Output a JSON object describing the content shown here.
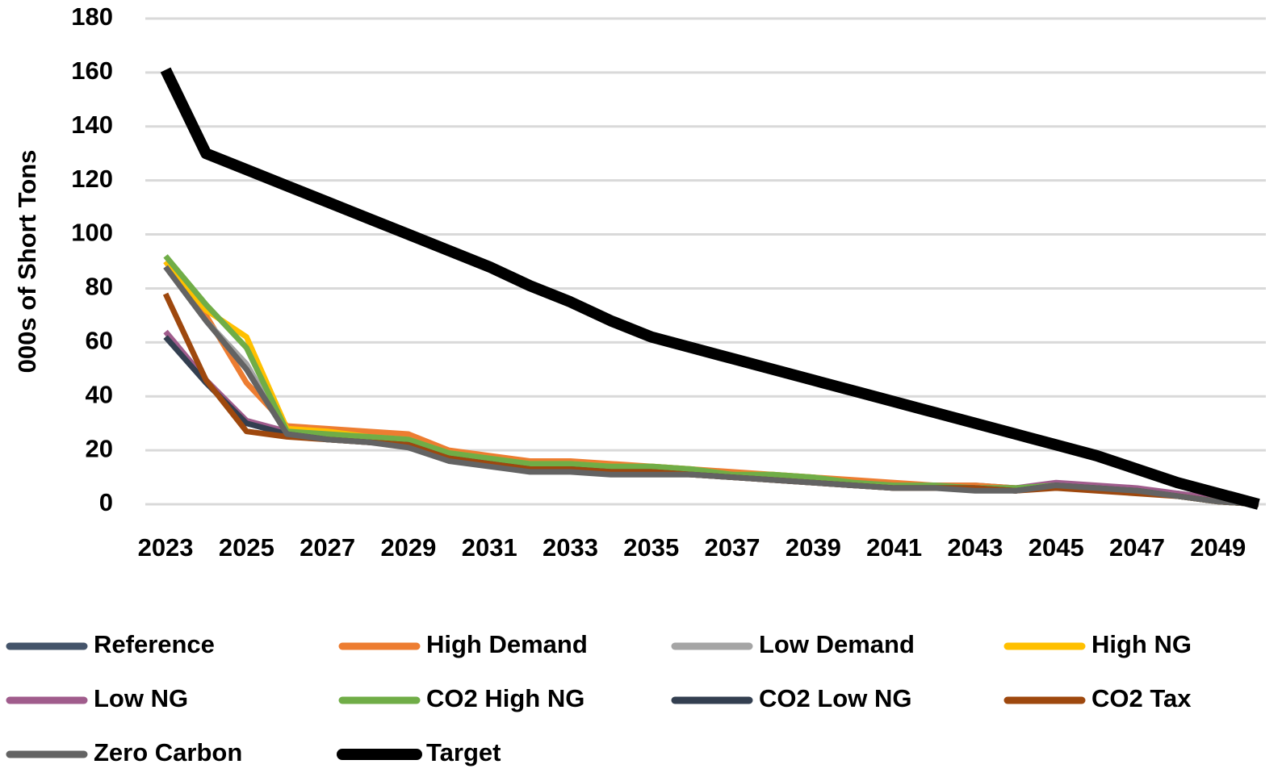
{
  "chart_data": {
    "type": "line",
    "ylabel": "000s of Short Tons",
    "x": [
      2023,
      2024,
      2025,
      2026,
      2027,
      2028,
      2029,
      2030,
      2031,
      2032,
      2033,
      2034,
      2035,
      2036,
      2037,
      2038,
      2039,
      2040,
      2041,
      2042,
      2043,
      2044,
      2045,
      2046,
      2047,
      2048,
      2049,
      2050
    ],
    "xlim": [
      2022.5,
      2050.5
    ],
    "xticks": [
      2023,
      2025,
      2027,
      2029,
      2031,
      2033,
      2035,
      2037,
      2039,
      2041,
      2043,
      2045,
      2047,
      2049
    ],
    "ylim": [
      0,
      180
    ],
    "yticks": [
      0,
      20,
      40,
      60,
      80,
      100,
      120,
      140,
      160,
      180
    ],
    "grid": true,
    "legend": "bottom",
    "series": [
      {
        "name": "Reference",
        "color": "#44546a",
        "values": [
          62,
          46,
          30,
          26,
          25,
          24,
          23,
          18,
          16,
          14,
          14,
          13,
          13,
          12,
          11,
          10,
          9,
          8,
          7,
          7,
          7,
          6,
          7,
          6,
          5,
          4,
          2,
          1
        ]
      },
      {
        "name": "High Demand",
        "color": "#ed7d31",
        "values": [
          90,
          70,
          45,
          29,
          28,
          27,
          26,
          20,
          18,
          16,
          16,
          15,
          14,
          13,
          12,
          11,
          10,
          9,
          8,
          7,
          7,
          6,
          7,
          6,
          5,
          3,
          2,
          0
        ]
      },
      {
        "name": "Low Demand",
        "color": "#a5a5a5",
        "values": [
          88,
          68,
          52,
          26,
          25,
          23,
          22,
          17,
          15,
          13,
          13,
          12,
          12,
          11,
          10,
          9,
          8,
          7,
          6,
          6,
          6,
          5,
          7,
          6,
          5,
          3,
          1,
          0
        ]
      },
      {
        "name": "High NG",
        "color": "#ffc000",
        "values": [
          90,
          72,
          62,
          28,
          27,
          25,
          24,
          19,
          17,
          15,
          15,
          14,
          14,
          13,
          11,
          11,
          10,
          8,
          7,
          7,
          6,
          6,
          7,
          6,
          5,
          3,
          1,
          0
        ]
      },
      {
        "name": "Low NG",
        "color": "#a05c8c",
        "values": [
          64,
          46,
          31,
          27,
          25,
          24,
          23,
          18,
          16,
          14,
          14,
          13,
          13,
          12,
          11,
          10,
          9,
          8,
          7,
          7,
          6,
          6,
          8,
          7,
          6,
          4,
          2,
          0
        ]
      },
      {
        "name": "CO2 High NG",
        "color": "#70ad47",
        "values": [
          92,
          74,
          58,
          27,
          26,
          25,
          24,
          19,
          17,
          15,
          15,
          14,
          14,
          13,
          11,
          11,
          10,
          8,
          7,
          7,
          6,
          6,
          7,
          6,
          5,
          3,
          1,
          0
        ]
      },
      {
        "name": "CO2 Low NG",
        "color": "#333f50",
        "values": [
          62,
          45,
          30,
          26,
          24,
          23,
          22,
          17,
          15,
          13,
          13,
          12,
          12,
          11,
          10,
          9,
          8,
          7,
          6,
          6,
          6,
          5,
          7,
          6,
          5,
          3,
          1,
          0
        ]
      },
      {
        "name": "CO2 Tax",
        "color": "#9e480e",
        "values": [
          78,
          46,
          27,
          25,
          24,
          23,
          22,
          17,
          15,
          13,
          13,
          12,
          12,
          11,
          10,
          9,
          8,
          7,
          6,
          6,
          6,
          5,
          6,
          5,
          4,
          3,
          1,
          0
        ]
      },
      {
        "name": "Zero Carbon",
        "color": "#636363",
        "values": [
          88,
          68,
          50,
          26,
          24,
          23,
          21,
          16,
          14,
          12,
          12,
          11,
          11,
          11,
          10,
          9,
          8,
          7,
          6,
          6,
          5,
          5,
          7,
          6,
          5,
          3,
          1,
          0
        ]
      },
      {
        "name": "Target",
        "color": "#000000",
        "values": [
          161,
          130,
          124,
          118,
          112,
          106,
          100,
          94,
          88,
          81,
          75,
          68,
          62,
          58,
          54,
          50,
          46,
          42,
          38,
          34,
          30,
          26,
          22,
          18,
          13,
          8,
          4,
          0
        ]
      }
    ]
  }
}
